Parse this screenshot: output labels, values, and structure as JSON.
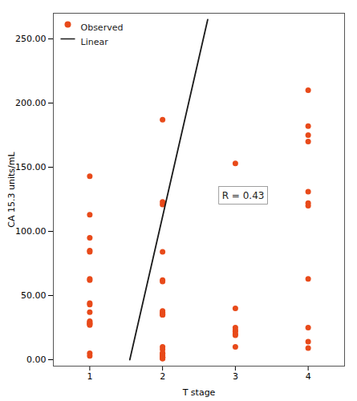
{
  "chart_data": {
    "type": "scatter",
    "xlabel": "T stage",
    "ylabel": "CA 15.3 units/mL",
    "xlim": [
      0.5,
      4.5
    ],
    "ylim": [
      -5,
      270
    ],
    "xticks": [
      1,
      2,
      3,
      4
    ],
    "yticks": [
      {
        "value": 0,
        "label": "0.00"
      },
      {
        "value": 50,
        "label": "50.00"
      },
      {
        "value": 100,
        "label": "100.00"
      },
      {
        "value": 150,
        "label": "150.00"
      },
      {
        "value": 200,
        "label": "200.00"
      },
      {
        "value": 250,
        "label": "250.00"
      }
    ],
    "legend": "upper left",
    "series": [
      {
        "name": "Observed",
        "type": "scatter",
        "marker": "circle",
        "color": "#E84A1A",
        "x": [
          1,
          1,
          1,
          1,
          1,
          1,
          1,
          1,
          1,
          1,
          1,
          1,
          1,
          1,
          1,
          1,
          1,
          2,
          2,
          2,
          2,
          2,
          2,
          2,
          2,
          2,
          2,
          2,
          2,
          2,
          2,
          2,
          2,
          2,
          2,
          2,
          2,
          2,
          2,
          2,
          3,
          3,
          3,
          3,
          3,
          3,
          3,
          3,
          4,
          4,
          4,
          4,
          4,
          4,
          4,
          4,
          4,
          4,
          4
        ],
        "values": [
          143,
          113,
          95,
          85,
          84,
          63,
          62,
          44,
          43,
          37,
          30,
          29,
          28,
          28,
          27,
          5,
          3,
          187,
          123,
          121,
          84,
          62,
          61,
          38,
          37,
          36,
          36,
          35,
          35,
          10,
          8,
          5,
          5,
          4,
          3,
          2,
          2,
          2,
          1,
          1,
          153,
          40,
          25,
          23,
          22,
          20,
          19,
          10,
          210,
          182,
          175,
          170,
          131,
          122,
          120,
          63,
          25,
          14,
          9
        ]
      },
      {
        "name": "Linear",
        "type": "line",
        "line_style": "solid",
        "color": "#1a1a1a",
        "x": [
          1.55,
          2.62
        ],
        "values": [
          0,
          265
        ]
      }
    ],
    "annotations": [
      {
        "text": "R = 0.43",
        "x": 2.75,
        "y": 128
      }
    ]
  }
}
